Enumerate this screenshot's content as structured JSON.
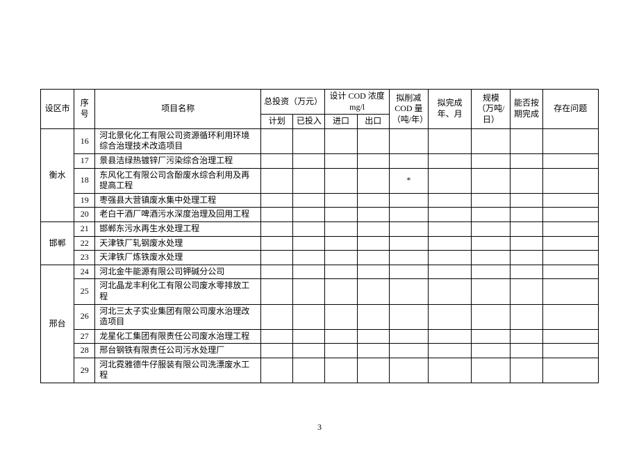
{
  "table": {
    "columns": {
      "city": "设区市",
      "seq": "序号",
      "project": "项目名称",
      "invest": "总投资（万元）",
      "invest_plan": "计划",
      "invest_done": "已投入",
      "cod": "设计 COD 浓度mg/l",
      "cod_in": "进口",
      "cod_out": "出口",
      "reduce": "拟削减COD 量（吨/年）",
      "finish_time": "拟完成年、月",
      "scale": "规模（万吨/日）",
      "ontime": "能否按期完成",
      "issue": "存在问题"
    },
    "col_widths": {
      "city": 48,
      "seq": 30,
      "project": 238,
      "invest_plan": 46,
      "invest_done": 46,
      "cod_in": 46,
      "cod_out": 46,
      "reduce": 56,
      "finish_time": 62,
      "scale": 56,
      "ontime": 46,
      "issue": 80
    },
    "groups": [
      {
        "city": "衡水",
        "rows": [
          {
            "seq": "16",
            "project": "河北景化化工有限公司资源循环利用环境综合治理技术改造项目",
            "reduce": ""
          },
          {
            "seq": "17",
            "project": "景县洁绿热镀锌厂污染综合治理工程",
            "reduce": ""
          },
          {
            "seq": "18",
            "project": "东风化工有限公司含酚废水综合利用及再提高工程",
            "reduce": "*"
          },
          {
            "seq": "19",
            "project": "枣强县大营镇废水集中处理工程",
            "reduce": ""
          },
          {
            "seq": "20",
            "project": "老白干酒厂啤酒污水深度治理及回用工程",
            "reduce": ""
          }
        ]
      },
      {
        "city": "邯郸",
        "rows": [
          {
            "seq": "21",
            "project": "邯郸东污水再生水处理工程",
            "reduce": ""
          },
          {
            "seq": "22",
            "project": "天津铁厂轧钢废水处理",
            "reduce": ""
          },
          {
            "seq": "23",
            "project": "天津铁厂炼铁废水处理",
            "reduce": ""
          }
        ]
      },
      {
        "city": "邢台",
        "rows": [
          {
            "seq": "24",
            "project": "河北金牛能源有限公司钾碱分公司",
            "reduce": ""
          },
          {
            "seq": "25",
            "project": "河北晶龙丰利化工有限公司废水零排放工程",
            "reduce": ""
          },
          {
            "seq": "26",
            "project": "河北三太子实业集团有限公司废水治理改造项目",
            "reduce": ""
          },
          {
            "seq": "27",
            "project": "龙星化工集团有限责任公司废水治理工程",
            "reduce": ""
          },
          {
            "seq": "28",
            "project": "邢台钢铁有限责任公司污水处理厂",
            "reduce": ""
          },
          {
            "seq": "29",
            "project": "河北霓雅德牛仔服装有限公司洗漂废水工程",
            "reduce": ""
          }
        ]
      }
    ]
  },
  "page_number": "3",
  "style": {
    "border_color": "#000000",
    "background_color": "#ffffff",
    "font_size_body": 12,
    "font_family": "SimSun"
  }
}
